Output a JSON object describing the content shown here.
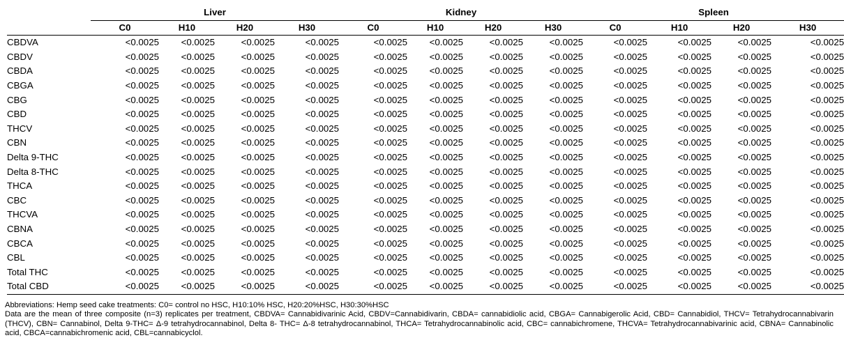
{
  "table": {
    "groups": [
      "Liver",
      "Kidney",
      "Spleen"
    ],
    "subheaders": [
      "C0",
      "H10",
      "H20",
      "H30",
      "C0",
      "H10",
      "H20",
      "H30",
      "C0",
      "H10",
      "H20",
      "H30"
    ],
    "rows": [
      {
        "label": "CBDVA",
        "values": [
          "<0.0025",
          "<0.0025",
          "<0.0025",
          "<0.0025",
          "<0.0025",
          "<0.0025",
          "<0.0025",
          "<0.0025",
          "<0.0025",
          "<0.0025",
          "<0.0025",
          "<0.0025"
        ]
      },
      {
        "label": "CBDV",
        "values": [
          "<0.0025",
          "<0.0025",
          "<0.0025",
          "<0.0025",
          "<0.0025",
          "<0.0025",
          "<0.0025",
          "<0.0025",
          "<0.0025",
          "<0.0025",
          "<0.0025",
          "<0.0025"
        ]
      },
      {
        "label": "CBDA",
        "values": [
          "<0.0025",
          "<0.0025",
          "<0.0025",
          "<0.0025",
          "<0.0025",
          "<0.0025",
          "<0.0025",
          "<0.0025",
          "<0.0025",
          "<0.0025",
          "<0.0025",
          "<0.0025"
        ]
      },
      {
        "label": "CBGA",
        "values": [
          "<0.0025",
          "<0.0025",
          "<0.0025",
          "<0.0025",
          "<0.0025",
          "<0.0025",
          "<0.0025",
          "<0.0025",
          "<0.0025",
          "<0.0025",
          "<0.0025",
          "<0.0025"
        ]
      },
      {
        "label": "CBG",
        "values": [
          "<0.0025",
          "<0.0025",
          "<0.0025",
          "<0.0025",
          "<0.0025",
          "<0.0025",
          "<0.0025",
          "<0.0025",
          "<0.0025",
          "<0.0025",
          "<0.0025",
          "<0.0025"
        ]
      },
      {
        "label": "CBD",
        "values": [
          "<0.0025",
          "<0.0025",
          "<0.0025",
          "<0.0025",
          "<0.0025",
          "<0.0025",
          "<0.0025",
          "<0.0025",
          "<0.0025",
          "<0.0025",
          "<0.0025",
          "<0.0025"
        ]
      },
      {
        "label": "THCV",
        "values": [
          "<0.0025",
          "<0.0025",
          "<0.0025",
          "<0.0025",
          "<0.0025",
          "<0.0025",
          "<0.0025",
          "<0.0025",
          "<0.0025",
          "<0.0025",
          "<0.0025",
          "<0.0025"
        ]
      },
      {
        "label": "CBN",
        "values": [
          "<0.0025",
          "<0.0025",
          "<0.0025",
          "<0.0025",
          "<0.0025",
          "<0.0025",
          "<0.0025",
          "<0.0025",
          "<0.0025",
          "<0.0025",
          "<0.0025",
          "<0.0025"
        ]
      },
      {
        "label": "Delta 9-THC",
        "values": [
          "<0.0025",
          "<0.0025",
          "<0.0025",
          "<0.0025",
          "<0.0025",
          "<0.0025",
          "<0.0025",
          "<0.0025",
          "<0.0025",
          "<0.0025",
          "<0.0025",
          "<0.0025"
        ]
      },
      {
        "label": "Delta 8-THC",
        "values": [
          "<0.0025",
          "<0.0025",
          "<0.0025",
          "<0.0025",
          "<0.0025",
          "<0.0025",
          "<0.0025",
          "<0.0025",
          "<0.0025",
          "<0.0025",
          "<0.0025",
          "<0.0025"
        ]
      },
      {
        "label": "THCA",
        "values": [
          "<0.0025",
          "<0.0025",
          "<0.0025",
          "<0.0025",
          "<0.0025",
          "<0.0025",
          "<0.0025",
          "<0.0025",
          "<0.0025",
          "<0.0025",
          "<0.0025",
          "<0.0025"
        ]
      },
      {
        "label": "CBC",
        "values": [
          "<0.0025",
          "<0.0025",
          "<0.0025",
          "<0.0025",
          "<0.0025",
          "<0.0025",
          "<0.0025",
          "<0.0025",
          "<0.0025",
          "<0.0025",
          "<0.0025",
          "<0.0025"
        ]
      },
      {
        "label": "THCVA",
        "values": [
          "<0.0025",
          "<0.0025",
          "<0.0025",
          "<0.0025",
          "<0.0025",
          "<0.0025",
          "<0.0025",
          "<0.0025",
          "<0.0025",
          "<0.0025",
          "<0.0025",
          "<0.0025"
        ]
      },
      {
        "label": "CBNA",
        "values": [
          "<0.0025",
          "<0.0025",
          "<0.0025",
          "<0.0025",
          "<0.0025",
          "<0.0025",
          "<0.0025",
          "<0.0025",
          "<0.0025",
          "<0.0025",
          "<0.0025",
          "<0.0025"
        ]
      },
      {
        "label": "CBCA",
        "values": [
          "<0.0025",
          "<0.0025",
          "<0.0025",
          "<0.0025",
          "<0.0025",
          "<0.0025",
          "<0.0025",
          "<0.0025",
          "<0.0025",
          "<0.0025",
          "<0.0025",
          "<0.0025"
        ]
      },
      {
        "label": "CBL",
        "values": [
          "<0.0025",
          "<0.0025",
          "<0.0025",
          "<0.0025",
          "<0.0025",
          "<0.0025",
          "<0.0025",
          "<0.0025",
          "<0.0025",
          "<0.0025",
          "<0.0025",
          "<0.0025"
        ]
      },
      {
        "label": "Total THC",
        "values": [
          "<0.0025",
          "<0.0025",
          "<0.0025",
          "<0.0025",
          "<0.0025",
          "<0.0025",
          "<0.0025",
          "<0.0025",
          "<0.0025",
          "<0.0025",
          "<0.0025",
          "<0.0025"
        ]
      },
      {
        "label": "Total CBD",
        "values": [
          "<0.0025",
          "<0.0025",
          "<0.0025",
          "<0.0025",
          "<0.0025",
          "<0.0025",
          "<0.0025",
          "<0.0025",
          "<0.0025",
          "<0.0025",
          "<0.0025",
          "<0.0025"
        ]
      }
    ]
  },
  "notes": {
    "abbreviations": "Abbreviations: Hemp seed cake treatments: C0= control no HSC, H10:10% HSC, H20:20%HSC, H30:30%HSC",
    "data_note": "Data are the mean of three composite (n=3) replicates per treatment, CBDVA= Cannabidivarinic Acid, CBDV=Cannabidivarin, CBDA= cannabidiolic acid, CBGA= Cannabigerolic Acid, CBD= Cannabidiol, THCV= Tetrahydrocannabivarin (THCV), CBN= Cannabinol, Delta 9-THC= Δ-9 tetrahydrocannabinol, Delta 8- THC= Δ-8 tetrahydrocannabinol, THCA= Tetrahydrocannabinolic acid, CBC= cannabichromene, THCVA= Tetrahydrocannabivarinic acid, CBNA= Cannabinolic acid, CBCA=cannabichromenic acid, CBL=cannabicyclol."
  }
}
